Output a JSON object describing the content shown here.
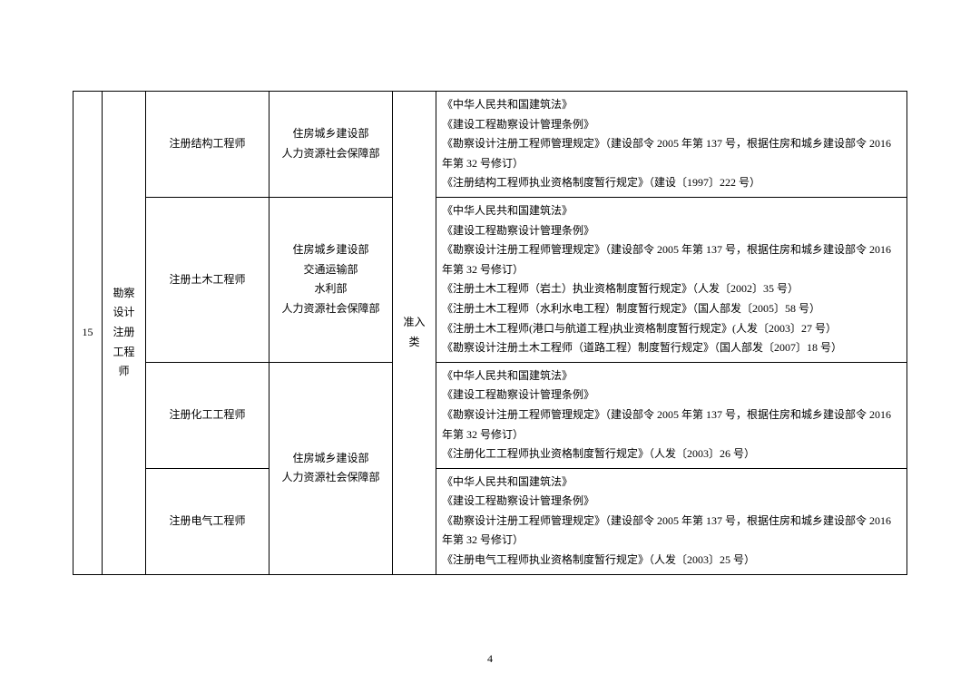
{
  "page_number": "4",
  "table": {
    "seq": "15",
    "category": "勘察设计注册工程师",
    "type": "准入类",
    "rows": [
      {
        "subject": "注册结构工程师",
        "dept": "住房城乡建设部\n人力资源社会保障部",
        "basis": "《中华人民共和国建筑法》\n《建设工程勘察设计管理条例》\n《勘察设计注册工程师管理规定》（建设部令 2005 年第 137 号，根据住房和城乡建设部令 2016 年第 32 号修订）\n《注册结构工程师执业资格制度暂行规定》（建设〔1997〕222 号）"
      },
      {
        "subject": "注册土木工程师",
        "dept": "住房城乡建设部\n交通运输部\n水利部\n人力资源社会保障部",
        "basis": "《中华人民共和国建筑法》\n《建设工程勘察设计管理条例》\n《勘察设计注册工程师管理规定》（建设部令 2005 年第 137 号，根据住房和城乡建设部令 2016 年第 32 号修订）\n《注册土木工程师（岩土）执业资格制度暂行规定》（人发〔2002〕35 号）\n《注册土木工程师（水利水电工程）制度暂行规定》（国人部发〔2005〕58 号）\n《注册土木工程师(港口与航道工程)执业资格制度暂行规定》(人发〔2003〕27 号）\n《勘察设计注册土木工程师（道路工程）制度暂行规定》（国人部发〔2007〕18 号）"
      },
      {
        "subject": "注册化工工程师",
        "dept": "住房城乡建设部\n人力资源社会保障部",
        "basis": "《中华人民共和国建筑法》\n《建设工程勘察设计管理条例》\n《勘察设计注册工程师管理规定》（建设部令 2005 年第 137 号，根据住房和城乡建设部令 2016 年第 32 号修订）\n《注册化工工程师执业资格制度暂行规定》（人发〔2003〕26 号）"
      },
      {
        "subject": "注册电气工程师",
        "basis": "《中华人民共和国建筑法》\n《建设工程勘察设计管理条例》\n《勘察设计注册工程师管理规定》（建设部令 2005 年第 137 号，根据住房和城乡建设部令 2016 年第 32 号修订）\n《注册电气工程师执业资格制度暂行规定》（人发〔2003〕25 号）"
      }
    ]
  },
  "styling": {
    "font_family": "SimSun",
    "font_size_pt": 9,
    "border_color": "#000000",
    "text_color": "#000000",
    "background_color": "#ffffff",
    "line_height": 1.8
  }
}
